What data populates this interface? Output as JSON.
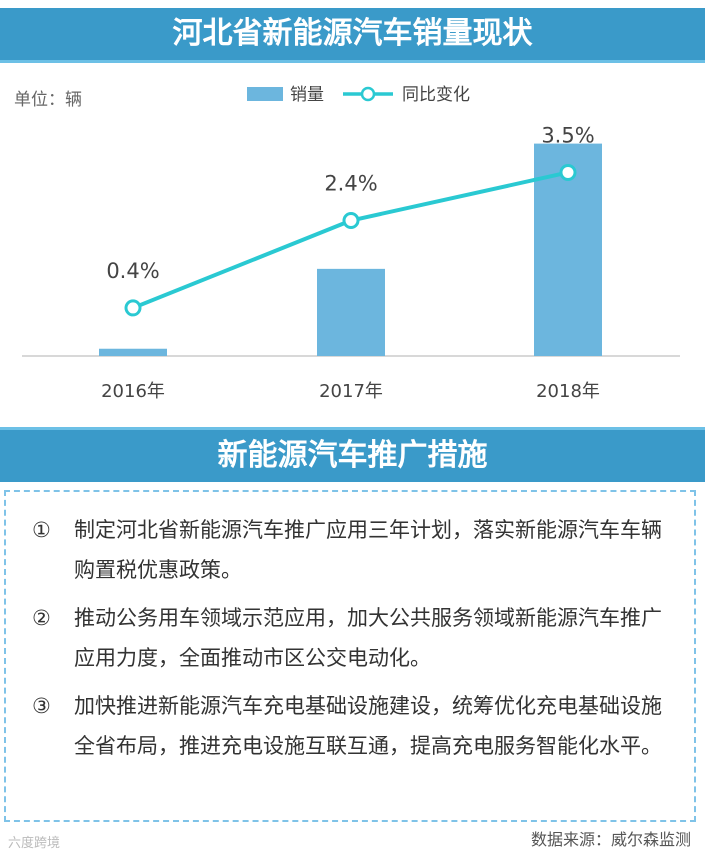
{
  "title": "河北省新能源汽车销量现状",
  "chart_data": {
    "type": "bar",
    "unit": "单位：辆",
    "categories": [
      "2016年",
      "2017年",
      "2018年"
    ],
    "series": [
      {
        "name": "销量",
        "type": "bar",
        "values": [
          4,
          48,
          117
        ]
      },
      {
        "name": "同比变化",
        "type": "line",
        "values": [
          0.4,
          2.4,
          3.5
        ],
        "labels": [
          "0.4%",
          "2.4%",
          "3.5%"
        ]
      }
    ],
    "ylim": [
      0,
      130
    ],
    "y2lim": [
      -0.7,
      4.7
    ],
    "legend": "top-center",
    "grid": false,
    "colors": {
      "bar": "#6cb6de",
      "line": "#2ac9d2"
    }
  },
  "measures": {
    "title": "新能源汽车推广措施",
    "items": [
      {
        "num": "①",
        "text": "制定河北省新能源汽车推广应用三年计划，落实新能源汽车车辆购置税优惠政策。"
      },
      {
        "num": "②",
        "text": "推动公务用车领域示范应用，加大公共服务领域新能源汽车推广应用力度，全面推动市区公交电动化。"
      },
      {
        "num": "③",
        "text": "加快推进新能源汽车充电基础设施建设，统筹优化充电基础设施全省布局，推进充电设施互联互通，提高充电服务智能化水平。"
      }
    ]
  },
  "source": "数据来源：威尔森监测",
  "watermark": "六度跨境"
}
